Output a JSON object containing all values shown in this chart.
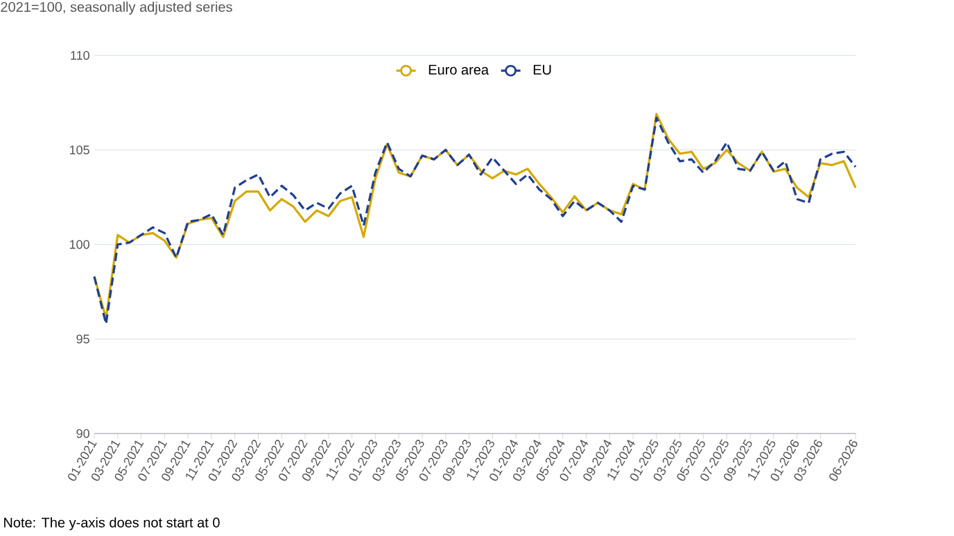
{
  "chart_data": {
    "type": "line",
    "subtitle": "2021=100, seasonally adjusted series",
    "categories": [
      "01-2021",
      null,
      "03-2021",
      null,
      "05-2021",
      null,
      "07-2021",
      null,
      "09-2021",
      null,
      "11-2021",
      null,
      "01-2022",
      null,
      "03-2022",
      null,
      "05-2022",
      null,
      "07-2022",
      null,
      "09-2022",
      null,
      "11-2022",
      null,
      "01-2023",
      null,
      "03-2023",
      null,
      "05-2023",
      null,
      "07-2023",
      null,
      "09-2023",
      null,
      "11-2023",
      null,
      "01-2024",
      null,
      "03-2024",
      null,
      "05-2024",
      null,
      "07-2024",
      null,
      "09-2024",
      null,
      "11-2024",
      null,
      "01-2025",
      null,
      "03-2025",
      null,
      "05-2025",
      null,
      "07-2025",
      null,
      "09-2025",
      null,
      "11-2025",
      null,
      "01-2026",
      null,
      "03-2026",
      null,
      null,
      "06-2026"
    ],
    "series": [
      {
        "name": "Euro area",
        "color": "#d4a900",
        "line_style": "solid",
        "values": [
          98.3,
          96.1,
          100.5,
          100.1,
          100.5,
          100.6,
          100.2,
          99.3,
          101.1,
          101.3,
          101.4,
          100.4,
          102.3,
          102.8,
          102.8,
          101.8,
          102.4,
          102.0,
          101.2,
          101.8,
          101.5,
          102.3,
          102.5,
          100.4,
          103.5,
          105.3,
          103.8,
          103.6,
          104.7,
          104.5,
          105.0,
          104.2,
          104.75,
          103.9,
          103.5,
          103.9,
          103.7,
          104.0,
          103.2,
          102.5,
          101.7,
          102.55,
          101.8,
          102.2,
          101.8,
          101.6,
          103.2,
          102.9,
          106.9,
          105.6,
          104.8,
          104.9,
          104.0,
          104.3,
          105.0,
          104.3,
          103.9,
          104.9,
          103.85,
          104.0,
          103.0,
          102.5,
          104.3,
          104.2,
          104.4,
          103.0
        ]
      },
      {
        "name": "EU",
        "color": "#1f3f8f",
        "line_style": "dashed",
        "values": [
          98.3,
          95.8,
          100.0,
          100.1,
          100.5,
          100.9,
          100.6,
          99.3,
          101.2,
          101.3,
          101.6,
          100.5,
          103.0,
          103.4,
          103.7,
          102.5,
          103.1,
          102.6,
          101.8,
          102.2,
          101.9,
          102.7,
          103.1,
          101.0,
          103.8,
          105.4,
          104.0,
          103.6,
          104.7,
          104.5,
          105.0,
          104.2,
          104.75,
          103.7,
          104.6,
          103.9,
          103.2,
          103.7,
          102.9,
          102.4,
          101.5,
          102.3,
          101.8,
          102.2,
          101.8,
          101.2,
          103.1,
          102.9,
          106.7,
          105.4,
          104.4,
          104.5,
          103.8,
          104.4,
          105.4,
          104.0,
          103.9,
          104.9,
          103.9,
          104.4,
          102.4,
          102.2,
          104.5,
          104.8,
          104.9,
          104.1
        ]
      }
    ],
    "ylim": [
      90,
      110
    ],
    "yticks": [
      90,
      95,
      100,
      105,
      110
    ],
    "grid": "y",
    "legend": "top",
    "marker": "none",
    "annotations": [
      "Note: The y-axis does not start at 0"
    ]
  }
}
